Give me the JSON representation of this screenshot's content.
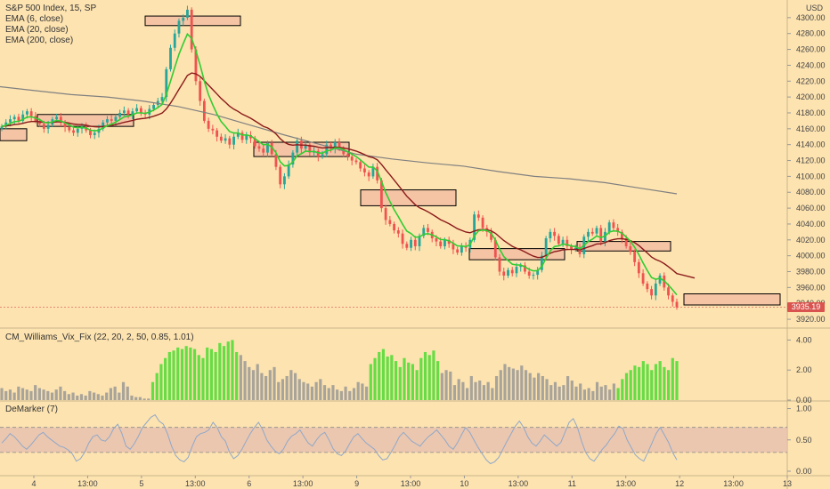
{
  "legend": {
    "title": "S&P 500 Index, 15, SP",
    "ema6": "EMA (6, close)",
    "ema20": "EMA (20, close)",
    "ema200": "EMA (200, close)"
  },
  "currency": "USD",
  "last_price": "3935.19",
  "indicators": {
    "vix_fix": "CM_Williams_Vix_Fix (22, 20, 2, 50, 0.85, 1.01)",
    "demarker": "DeMarker (7)"
  },
  "colors": {
    "background": "#fde3b0",
    "up": "#26a69a",
    "down": "#ef5350",
    "ema6": "#33cc33",
    "ema20": "#8b1a1a",
    "ema200": "#808080",
    "zone_fill": "#f4c4a4",
    "zone_border": "#000000",
    "vix_green": "#66dd44",
    "vix_gray": "#a9a49a",
    "demarker_line": "#90a8c8",
    "demarker_band": "#e6bfb0"
  },
  "chart_data": [
    {
      "type": "candlestick",
      "title": "S&P 500 Index, 15, SP",
      "ylabel": "USD",
      "ylim": [
        3910,
        4320
      ],
      "y_ticks": [
        "4300.00",
        "4280.00",
        "4260.00",
        "4240.00",
        "4220.00",
        "4200.00",
        "4180.00",
        "4160.00",
        "4140.00",
        "4120.00",
        "4100.00",
        "4080.00",
        "4060.00",
        "4040.00",
        "4020.00",
        "4000.00",
        "3980.00",
        "3960.00",
        "3940.00",
        "3920.00"
      ],
      "x_ticks": [
        "4",
        "13:00",
        "5",
        "13:00",
        "6",
        "13:00",
        "9",
        "13:00",
        "10",
        "13:00",
        "11",
        "13:00",
        "12",
        "13:00",
        "13"
      ],
      "closes": [
        4163,
        4168,
        4172,
        4175,
        4170,
        4178,
        4182,
        4176,
        4170,
        4166,
        4160,
        4165,
        4172,
        4175,
        4168,
        4162,
        4158,
        4155,
        4160,
        4163,
        4158,
        4152,
        4155,
        4160,
        4168,
        4172,
        4170,
        4175,
        4180,
        4183,
        4178,
        4182,
        4186,
        4180,
        4178,
        4185,
        4190,
        4195,
        4200,
        4235,
        4262,
        4280,
        4296,
        4300,
        4310,
        4260,
        4220,
        4195,
        4170,
        4160,
        4158,
        4150,
        4145,
        4148,
        4140,
        4150,
        4155,
        4146,
        4152,
        4148,
        4138,
        4135,
        4130,
        4142,
        4128,
        4112,
        4090,
        4100,
        4115,
        4130,
        4145,
        4135,
        4140,
        4130,
        4132,
        4125,
        4128,
        4140,
        4135,
        4143,
        4135,
        4128,
        4125,
        4120,
        4118,
        4110,
        4105,
        4100,
        4112,
        4095,
        4060,
        4045,
        4040,
        4032,
        4028,
        4015,
        4010,
        4020,
        4012,
        4025,
        4035,
        4030,
        4022,
        4018,
        4012,
        4020,
        4015,
        4008,
        4004,
        4012,
        4010,
        4020,
        4052,
        4048,
        4035,
        4030,
        4020,
        3998,
        3980,
        3975,
        3982,
        3978,
        3986,
        3988,
        3980,
        3975,
        3976,
        3982,
        4000,
        4022,
        4030,
        4025,
        4015,
        4020,
        4012,
        4008,
        4010,
        4002,
        4024,
        4030,
        4028,
        4035,
        4018,
        4030,
        4042,
        4035,
        4030,
        4022,
        4012,
        4005,
        3992,
        3978,
        3965,
        3958,
        3950,
        3965,
        3975,
        3960,
        3950,
        3942,
        3935
      ],
      "ema6_approx": "computed from closes",
      "ema20_approx": "computed from closes",
      "ema200_points": [
        [
          0,
          4213
        ],
        [
          40,
          4208
        ],
        [
          80,
          4203
        ],
        [
          120,
          4200
        ],
        [
          160,
          4195
        ],
        [
          200,
          4188
        ],
        [
          240,
          4178
        ],
        [
          280,
          4165
        ],
        [
          320,
          4152
        ],
        [
          360,
          4140
        ],
        [
          400,
          4128
        ],
        [
          440,
          4122
        ],
        [
          480,
          4117
        ],
        [
          520,
          4113
        ],
        [
          560,
          4106
        ],
        [
          600,
          4100
        ],
        [
          640,
          4097
        ],
        [
          680,
          4092
        ],
        [
          720,
          4085
        ],
        [
          760,
          4078
        ]
      ],
      "zones": [
        {
          "x": [
            0,
            30
          ],
          "y": [
            4145,
            4160
          ]
        },
        {
          "x": [
            42,
            150
          ],
          "y": [
            4163,
            4178
          ]
        },
        {
          "x": [
            163,
            270
          ],
          "y": [
            4290,
            4302
          ]
        },
        {
          "x": [
            285,
            392
          ],
          "y": [
            4125,
            4143
          ]
        },
        {
          "x": [
            405,
            512
          ],
          "y": [
            4063,
            4083
          ]
        },
        {
          "x": [
            527,
            634
          ],
          "y": [
            3995,
            4009
          ]
        },
        {
          "x": [
            648,
            753
          ],
          "y": [
            4006,
            4018
          ]
        },
        {
          "x": [
            768,
            876
          ],
          "y": [
            3938,
            3952
          ]
        }
      ]
    },
    {
      "type": "bar",
      "title": "CM_Williams_Vix_Fix (22, 20, 2, 50, 0.85, 1.01)",
      "ylim": [
        0,
        4.5
      ],
      "y_ticks": [
        "4.00",
        "2.00",
        "0.00"
      ],
      "values": [
        0.8,
        0.6,
        0.7,
        0.5,
        0.9,
        0.8,
        0.7,
        0.6,
        1.0,
        0.8,
        0.7,
        0.6,
        0.5,
        0.7,
        0.9,
        0.6,
        0.4,
        0.5,
        0.3,
        0.4,
        0.3,
        0.6,
        0.5,
        0.4,
        0.3,
        0.5,
        0.8,
        0.9,
        0.5,
        1.2,
        0.9,
        0.3,
        0.2,
        0.2,
        0.1,
        0.1,
        1.2,
        1.8,
        2.4,
        2.8,
        3.2,
        3.3,
        3.5,
        3.4,
        3.6,
        3.5,
        3.4,
        3.0,
        2.8,
        3.5,
        3.4,
        3.2,
        3.8,
        3.6,
        3.9,
        4.0,
        3.2,
        3.0,
        2.6,
        2.2,
        2.0,
        2.4,
        1.8,
        1.6,
        2.0,
        2.2,
        1.2,
        1.4,
        1.6,
        2.0,
        1.8,
        1.4,
        1.2,
        1.1,
        0.9,
        1.2,
        1.4,
        1.0,
        0.8,
        1.0,
        0.7,
        0.6,
        0.9,
        0.6,
        0.8,
        1.2,
        1.1,
        0.9,
        2.4,
        2.8,
        3.2,
        3.4,
        2.9,
        3.0,
        2.6,
        2.2,
        2.8,
        2.5,
        2.4,
        2.0,
        2.8,
        3.2,
        3.0,
        3.3,
        2.6,
        1.8,
        2.0,
        1.9,
        1.0,
        1.4,
        1.2,
        0.8,
        1.6,
        1.2,
        1.3,
        1.0,
        1.2,
        0.8,
        1.6,
        2.0,
        2.4,
        2.2,
        2.1,
        2.0,
        2.3,
        2.0,
        1.8,
        1.5,
        1.8,
        1.6,
        1.4,
        1.0,
        1.2,
        0.9,
        1.0,
        1.6,
        1.3,
        0.9,
        1.1,
        0.7,
        0.8,
        0.6,
        1.2,
        0.9,
        1.0,
        0.7,
        1.1,
        0.8,
        1.4,
        1.8,
        2.0,
        2.3,
        2.2,
        2.6,
        2.4,
        2.0,
        2.4,
        2.6,
        2.2,
        2.0,
        2.8,
        2.6
      ],
      "green_ranges": [
        [
          36,
          56
        ],
        [
          88,
          104
        ],
        [
          147,
          166
        ]
      ]
    },
    {
      "type": "line",
      "title": "DeMarker (7)",
      "ylim": [
        0,
        1.05
      ],
      "y_ticks": [
        "1.00",
        "0.50",
        "0.00"
      ],
      "band": [
        0.3,
        0.7
      ],
      "values": [
        0.45,
        0.52,
        0.6,
        0.55,
        0.48,
        0.4,
        0.35,
        0.42,
        0.5,
        0.58,
        0.62,
        0.55,
        0.5,
        0.45,
        0.4,
        0.38,
        0.34,
        0.28,
        0.16,
        0.2,
        0.3,
        0.45,
        0.55,
        0.58,
        0.5,
        0.48,
        0.55,
        0.68,
        0.75,
        0.6,
        0.4,
        0.35,
        0.44,
        0.56,
        0.7,
        0.78,
        0.86,
        0.9,
        0.8,
        0.75,
        0.6,
        0.4,
        0.25,
        0.18,
        0.15,
        0.22,
        0.4,
        0.55,
        0.6,
        0.62,
        0.66,
        0.78,
        0.7,
        0.55,
        0.48,
        0.3,
        0.2,
        0.25,
        0.35,
        0.48,
        0.6,
        0.7,
        0.78,
        0.66,
        0.5,
        0.4,
        0.32,
        0.28,
        0.35,
        0.48,
        0.56,
        0.6,
        0.66,
        0.55,
        0.45,
        0.4,
        0.5,
        0.58,
        0.62,
        0.5,
        0.36,
        0.28,
        0.25,
        0.32,
        0.44,
        0.55,
        0.6,
        0.52,
        0.45,
        0.4,
        0.35,
        0.25,
        0.18,
        0.2,
        0.3,
        0.42,
        0.55,
        0.62,
        0.55,
        0.48,
        0.44,
        0.4,
        0.48,
        0.55,
        0.6,
        0.66,
        0.58,
        0.5,
        0.4,
        0.35,
        0.45,
        0.58,
        0.7,
        0.62,
        0.5,
        0.38,
        0.28,
        0.18,
        0.12,
        0.15,
        0.22,
        0.35,
        0.48,
        0.6,
        0.72,
        0.8,
        0.7,
        0.55,
        0.45,
        0.4,
        0.48,
        0.58,
        0.52,
        0.46,
        0.4,
        0.46,
        0.62,
        0.78,
        0.84,
        0.7,
        0.48,
        0.3,
        0.2,
        0.16,
        0.25,
        0.35,
        0.42,
        0.52,
        0.6,
        0.72,
        0.68,
        0.5,
        0.38,
        0.26,
        0.2,
        0.16,
        0.3,
        0.45,
        0.6,
        0.7,
        0.58,
        0.46,
        0.3,
        0.18
      ]
    }
  ]
}
